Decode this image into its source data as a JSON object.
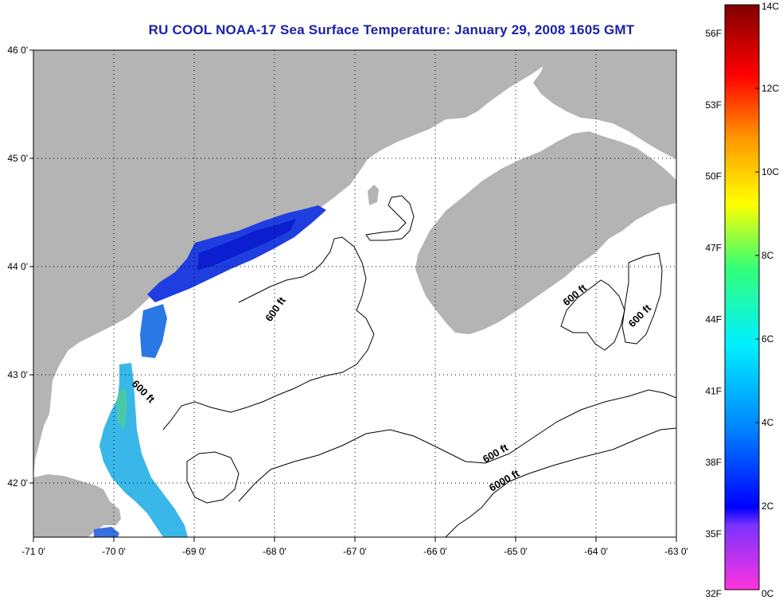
{
  "title": "RU COOL  NOAA-17  Sea Surface Temperature:  January 29, 2008 1605 GMT",
  "map": {
    "lon_range": [
      -71,
      -63
    ],
    "lat_range": [
      41.5,
      46
    ],
    "lon_ticks": [
      "-71 0'",
      "-70 0'",
      "-69 0'",
      "-68 0'",
      "-67 0'",
      "-66 0'",
      "-65 0'",
      "-64 0'",
      "-63 0'"
    ],
    "lat_ticks": [
      "46 0'",
      "45 0'",
      "44 0'",
      "43 0'",
      "42 0'"
    ],
    "grid": true,
    "land_color": "#b4b4b4",
    "contour_labels": [
      "600 ft",
      "600 ft",
      "600 ft",
      "600 ft",
      "600 ft",
      "6000 ft"
    ]
  },
  "colorbar": {
    "fahrenheit_labels": [
      "56F",
      "53F",
      "50F",
      "47F",
      "44F",
      "41F",
      "38F",
      "35F",
      "32F"
    ],
    "celsius_labels": [
      "14C",
      "12C",
      "10C",
      "8C",
      "6C",
      "4C",
      "2C",
      "0C"
    ],
    "range_celsius": [
      0,
      14
    ],
    "colors": [
      "#ff33cc",
      "#8833ff",
      "#0000ff",
      "#00aaff",
      "#00ffee",
      "#44ff66",
      "#ffff00",
      "#ff9900",
      "#ff0000",
      "#8b0000"
    ]
  }
}
